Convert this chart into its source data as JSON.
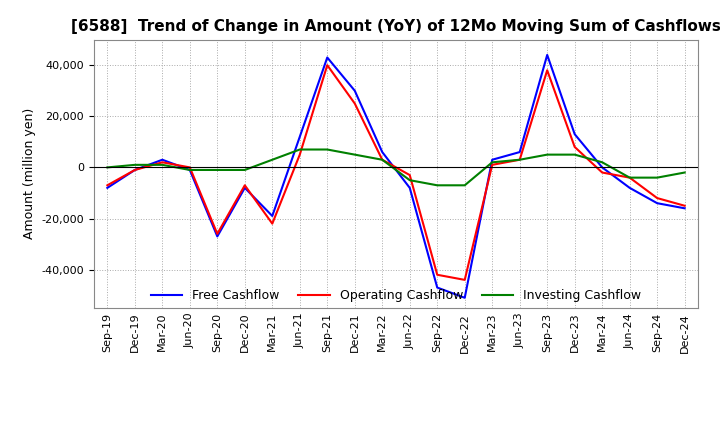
{
  "title": "[6588]  Trend of Change in Amount (YoY) of 12Mo Moving Sum of Cashflows",
  "ylabel": "Amount (million yen)",
  "x_labels": [
    "Sep-19",
    "Dec-19",
    "Mar-20",
    "Jun-20",
    "Sep-20",
    "Dec-20",
    "Mar-21",
    "Jun-21",
    "Sep-21",
    "Dec-21",
    "Mar-22",
    "Jun-22",
    "Sep-22",
    "Dec-22",
    "Mar-23",
    "Jun-23",
    "Sep-23",
    "Dec-23",
    "Mar-24",
    "Jun-24",
    "Sep-24",
    "Dec-24"
  ],
  "operating_cashflow": [
    -7000,
    -1000,
    2000,
    0,
    -26000,
    -7000,
    -22000,
    5000,
    40000,
    25000,
    3000,
    -3000,
    -42000,
    -44000,
    1000,
    3000,
    38000,
    8000,
    -2000,
    -4000,
    -12000,
    -15000
  ],
  "investing_cashflow": [
    0,
    1000,
    1000,
    -1000,
    -1000,
    -1000,
    3000,
    7000,
    7000,
    5000,
    3000,
    -5000,
    -7000,
    -7000,
    2000,
    3000,
    5000,
    5000,
    2000,
    -4000,
    -4000,
    -2000
  ],
  "free_cashflow": [
    -8000,
    -1000,
    3000,
    -1000,
    -27000,
    -8000,
    -19000,
    12000,
    43000,
    30000,
    6000,
    -8000,
    -47000,
    -51000,
    3000,
    6000,
    44000,
    13000,
    0,
    -8000,
    -14000,
    -16000
  ],
  "ylim": [
    -55000,
    50000
  ],
  "yticks": [
    -40000,
    -20000,
    0,
    20000,
    40000
  ],
  "operating_color": "#ff0000",
  "investing_color": "#008000",
  "free_color": "#0000ff",
  "background_color": "#ffffff",
  "grid_color": "#aaaaaa",
  "title_fontsize": 11,
  "label_fontsize": 9,
  "tick_fontsize": 8,
  "legend_fontsize": 9,
  "linewidth": 1.5
}
